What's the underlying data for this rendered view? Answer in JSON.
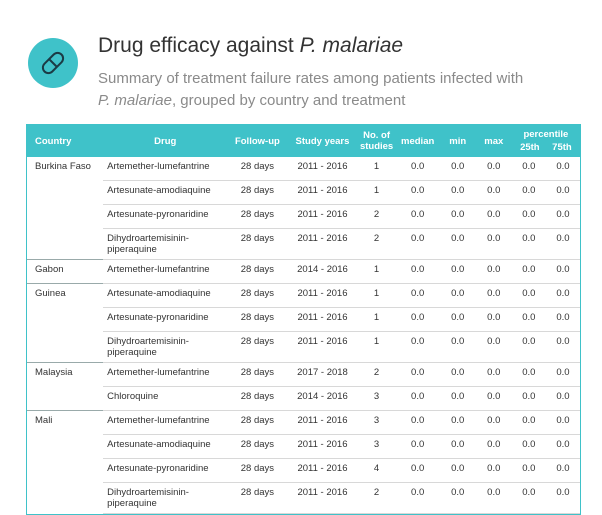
{
  "header": {
    "title_prefix": "Drug efficacy against ",
    "title_italic": "P. malariae",
    "subtitle_line1": "Summary of treatment failure rates among patients infected with",
    "subtitle_italic": "P. malariae",
    "subtitle_rest": ", grouped by country and treatment",
    "icon": "pill-icon",
    "accent_color": "#3fc2c9"
  },
  "table": {
    "columns": {
      "country": "Country",
      "drug": "Drug",
      "followup": "Follow-up",
      "years": "Study years",
      "studies": "No. of studies",
      "median": "median",
      "min": "min",
      "max": "max",
      "percentile": "percentile",
      "p25": "25th",
      "p75": "75th"
    },
    "rows": [
      {
        "country": "Burkina Faso",
        "drug": "Artemether-lumefantrine",
        "followup": "28 days",
        "years": "2011 - 2016",
        "studies": "1",
        "median": "0.0",
        "min": "0.0",
        "max": "0.0",
        "p25": "0.0",
        "p75": "0.0"
      },
      {
        "country": "",
        "drug": "Artesunate-amodiaquine",
        "followup": "28 days",
        "years": "2011 - 2016",
        "studies": "1",
        "median": "0.0",
        "min": "0.0",
        "max": "0.0",
        "p25": "0.0",
        "p75": "0.0"
      },
      {
        "country": "",
        "drug": "Artesunate-pyronaridine",
        "followup": "28 days",
        "years": "2011 - 2016",
        "studies": "2",
        "median": "0.0",
        "min": "0.0",
        "max": "0.0",
        "p25": "0.0",
        "p75": "0.0"
      },
      {
        "country": "",
        "drug": "Dihydroartemisinin-piperaquine",
        "followup": "28 days",
        "years": "2011 - 2016",
        "studies": "2",
        "median": "0.0",
        "min": "0.0",
        "max": "0.0",
        "p25": "0.0",
        "p75": "0.0"
      },
      {
        "country": "Gabon",
        "drug": "Artemether-lumefantrine",
        "followup": "28 days",
        "years": "2014 - 2016",
        "studies": "1",
        "median": "0.0",
        "min": "0.0",
        "max": "0.0",
        "p25": "0.0",
        "p75": "0.0"
      },
      {
        "country": "Guinea",
        "drug": "Artesunate-amodiaquine",
        "followup": "28 days",
        "years": "2011 - 2016",
        "studies": "1",
        "median": "0.0",
        "min": "0.0",
        "max": "0.0",
        "p25": "0.0",
        "p75": "0.0"
      },
      {
        "country": "",
        "drug": "Artesunate-pyronaridine",
        "followup": "28 days",
        "years": "2011 - 2016",
        "studies": "1",
        "median": "0.0",
        "min": "0.0",
        "max": "0.0",
        "p25": "0.0",
        "p75": "0.0"
      },
      {
        "country": "",
        "drug": "Dihydroartemisinin-piperaquine",
        "followup": "28 days",
        "years": "2011 - 2016",
        "studies": "1",
        "median": "0.0",
        "min": "0.0",
        "max": "0.0",
        "p25": "0.0",
        "p75": "0.0"
      },
      {
        "country": "Malaysia",
        "drug": "Artemether-lumefantrine",
        "followup": "28 days",
        "years": "2017 - 2018",
        "studies": "2",
        "median": "0.0",
        "min": "0.0",
        "max": "0.0",
        "p25": "0.0",
        "p75": "0.0"
      },
      {
        "country": "",
        "drug": "Chloroquine",
        "followup": "28 days",
        "years": "2014 - 2016",
        "studies": "3",
        "median": "0.0",
        "min": "0.0",
        "max": "0.0",
        "p25": "0.0",
        "p75": "0.0"
      },
      {
        "country": "Mali",
        "drug": "Artemether-lumefantrine",
        "followup": "28 days",
        "years": "2011 - 2016",
        "studies": "3",
        "median": "0.0",
        "min": "0.0",
        "max": "0.0",
        "p25": "0.0",
        "p75": "0.0"
      },
      {
        "country": "",
        "drug": "Artesunate-amodiaquine",
        "followup": "28 days",
        "years": "2011 - 2016",
        "studies": "3",
        "median": "0.0",
        "min": "0.0",
        "max": "0.0",
        "p25": "0.0",
        "p75": "0.0"
      },
      {
        "country": "",
        "drug": "Artesunate-pyronaridine",
        "followup": "28 days",
        "years": "2011 - 2016",
        "studies": "4",
        "median": "0.0",
        "min": "0.0",
        "max": "0.0",
        "p25": "0.0",
        "p75": "0.0"
      },
      {
        "country": "",
        "drug": "Dihydroartemisinin-piperaquine",
        "followup": "28 days",
        "years": "2011 - 2016",
        "studies": "2",
        "median": "0.0",
        "min": "0.0",
        "max": "0.0",
        "p25": "0.0",
        "p75": "0.0"
      }
    ]
  }
}
